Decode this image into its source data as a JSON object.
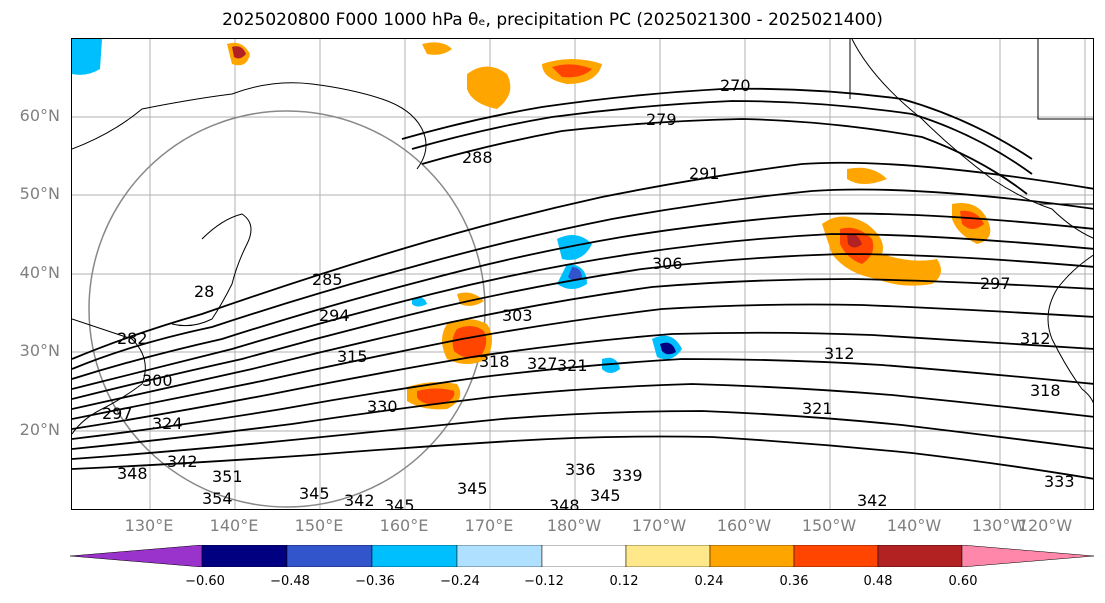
{
  "title": "2025020800 F000 1000 hPa θₑ, precipitation PC (2025021300 - 2025021400)",
  "lat_labels": [
    "60°N",
    "50°N",
    "40°N",
    "30°N",
    "20°N"
  ],
  "lon_labels": [
    "130°E",
    "140°E",
    "150°E",
    "160°E",
    "170°E",
    "180°W",
    "170°W",
    "160°W",
    "150°W",
    "140°W",
    "130°W",
    "120°W"
  ],
  "colorbar": {
    "colors": [
      "#9933cc",
      "#000080",
      "#3355cc",
      "#00bfff",
      "#b0e0ff",
      "#ffffff",
      "#ffe88a",
      "#ffa500",
      "#ff4500",
      "#b22222",
      "#ff88aa"
    ],
    "ticks": [
      "−0.60",
      "−0.48",
      "−0.36",
      "−0.24",
      "−0.12",
      "0.12",
      "0.24",
      "0.36",
      "0.48",
      "0.60"
    ]
  },
  "contour_labels": [
    "270",
    "279",
    "288",
    "291",
    "306",
    "285",
    "294",
    "303",
    "312",
    "282",
    "315",
    "318",
    "321",
    "318",
    "300",
    "324",
    "330",
    "321",
    "342",
    "348",
    "351",
    "354",
    "345",
    "342",
    "345",
    "345",
    "348",
    "345",
    "336",
    "339",
    "342",
    "333",
    "327",
    "28",
    "297",
    "312",
    "297"
  ]
}
